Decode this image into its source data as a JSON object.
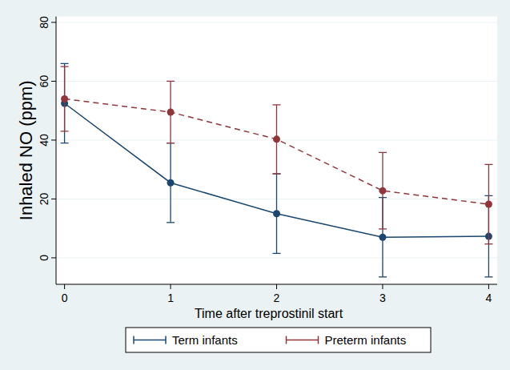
{
  "chart_data": {
    "type": "line",
    "x_label": "Time after treprostinil start",
    "y_label": "Inhaled NO (ppm)",
    "xlim": [
      -0.08,
      4.08
    ],
    "xticks": [
      0,
      1,
      2,
      3,
      4
    ],
    "ylim": [
      -9,
      82
    ],
    "yticks": [
      0,
      20,
      40,
      60,
      80
    ],
    "grid": true,
    "legend": "bottom",
    "series": [
      {
        "name": "Term infants",
        "color": "#1a476f",
        "marker": "circle",
        "line_style": "solid",
        "x": [
          0,
          1,
          2,
          3,
          4
        ],
        "values": [
          52.5,
          25.5,
          15,
          7,
          7.3
        ],
        "errors": [
          13.5,
          13.5,
          13.5,
          13.5,
          13.8
        ]
      },
      {
        "name": "Preterm infants",
        "color": "#90353b",
        "marker": "circle",
        "line_style": "dashed",
        "x": [
          0,
          1,
          2,
          3,
          4
        ],
        "values": [
          54,
          49.5,
          40.3,
          22.8,
          18.2
        ],
        "errors": [
          11,
          10.5,
          11.7,
          13,
          13.5
        ]
      }
    ]
  }
}
